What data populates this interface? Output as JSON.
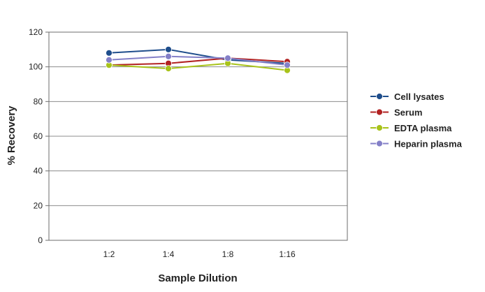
{
  "chart_data": {
    "type": "line",
    "title": "",
    "xlabel": "Sample Dilution",
    "ylabel": "% Recovery",
    "categories": [
      "1:2",
      "1:4",
      "1:8",
      "1:16"
    ],
    "ylim": [
      0,
      120
    ],
    "yticks": [
      0,
      20,
      40,
      60,
      80,
      100,
      120
    ],
    "grid": true,
    "legend_position": "right",
    "series": [
      {
        "name": "Cell lysates",
        "color": "#1f4e8c",
        "values": [
          108,
          110,
          104,
          102
        ]
      },
      {
        "name": "Serum",
        "color": "#b22222",
        "values": [
          101,
          102,
          105,
          103
        ]
      },
      {
        "name": "EDTA plasma",
        "color": "#a8c31a",
        "values": [
          101,
          99,
          102,
          98
        ]
      },
      {
        "name": "Heparin plasma",
        "color": "#8480c8",
        "values": [
          104,
          106,
          105,
          101
        ]
      }
    ]
  }
}
